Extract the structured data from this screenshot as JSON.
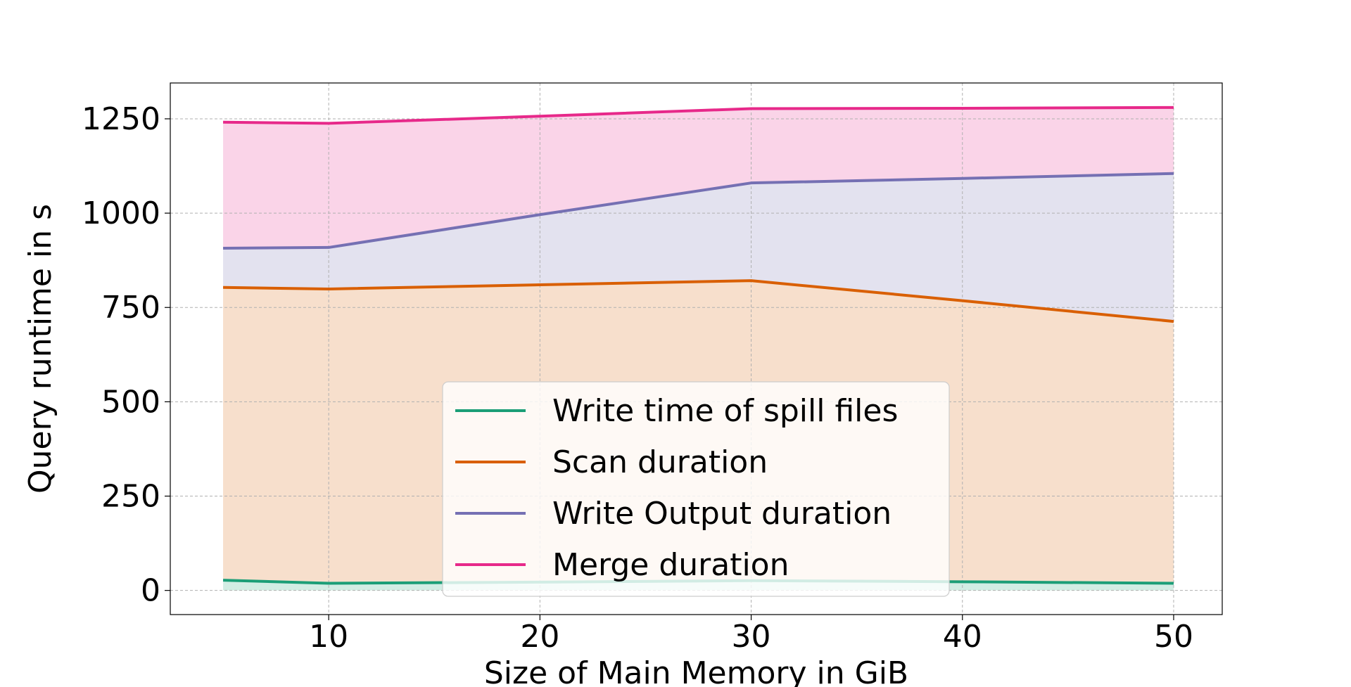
{
  "chart_data": {
    "type": "area",
    "title": "",
    "xlabel": "Size of Main Memory in GiB",
    "ylabel": "Query runtime in s",
    "x": [
      5,
      10,
      20,
      30,
      40,
      50
    ],
    "xlim": [
      2.5,
      52.3
    ],
    "ylim": [
      -64,
      1345
    ],
    "xticks": [
      10,
      20,
      30,
      40,
      50
    ],
    "yticks": [
      0,
      250,
      500,
      750,
      1000,
      1250
    ],
    "grid": true,
    "legend_position": "lower-center",
    "series": [
      {
        "name": "Write time of spill files",
        "color": "#1b9e77",
        "fill": "#d2ede4",
        "values": [
          27,
          19,
          22,
          26,
          23,
          19
        ]
      },
      {
        "name": "Scan duration",
        "color": "#d95f02",
        "fill": "#f7dfcc",
        "values": [
          803,
          799,
          810,
          821,
          768,
          713
        ]
      },
      {
        "name": "Write Output duration",
        "color": "#7570b3",
        "fill": "#e3e2ef",
        "values": [
          907,
          909,
          996,
          1080,
          1092,
          1105
        ]
      },
      {
        "name": "Merge duration",
        "color": "#e7298a",
        "fill": "#fad4e8",
        "values": [
          1241,
          1238,
          1257,
          1277,
          1278,
          1280
        ]
      }
    ]
  }
}
